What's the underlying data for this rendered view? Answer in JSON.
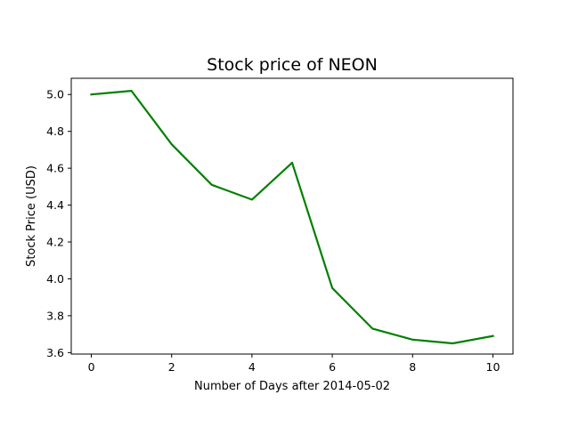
{
  "chart_data": {
    "type": "line",
    "title": "Stock price of NEON",
    "xlabel": "Number of Days after 2014-05-02",
    "ylabel": "Stock Price (USD)",
    "x": [
      0,
      1,
      2,
      3,
      4,
      5,
      6,
      7,
      8,
      9,
      10
    ],
    "series": [
      {
        "values": [
          5.0,
          5.02,
          4.73,
          4.51,
          4.43,
          4.63,
          3.95,
          3.73,
          3.67,
          3.65,
          3.69
        ],
        "color": "#008000"
      }
    ],
    "xlim": [
      -0.5,
      10.5
    ],
    "ylim": [
      3.592,
      5.088
    ],
    "xticks": [
      0,
      2,
      4,
      6,
      8,
      10
    ],
    "xtick_labels": [
      "0",
      "2",
      "4",
      "6",
      "8",
      "10"
    ],
    "yticks": [
      3.6,
      3.8,
      4.0,
      4.2,
      4.4,
      4.6,
      4.8,
      5.0
    ],
    "ytick_labels": [
      "3.6",
      "3.8",
      "4.0",
      "4.2",
      "4.4",
      "4.6",
      "4.8",
      "5.0"
    ],
    "grid": false,
    "legend": false
  }
}
